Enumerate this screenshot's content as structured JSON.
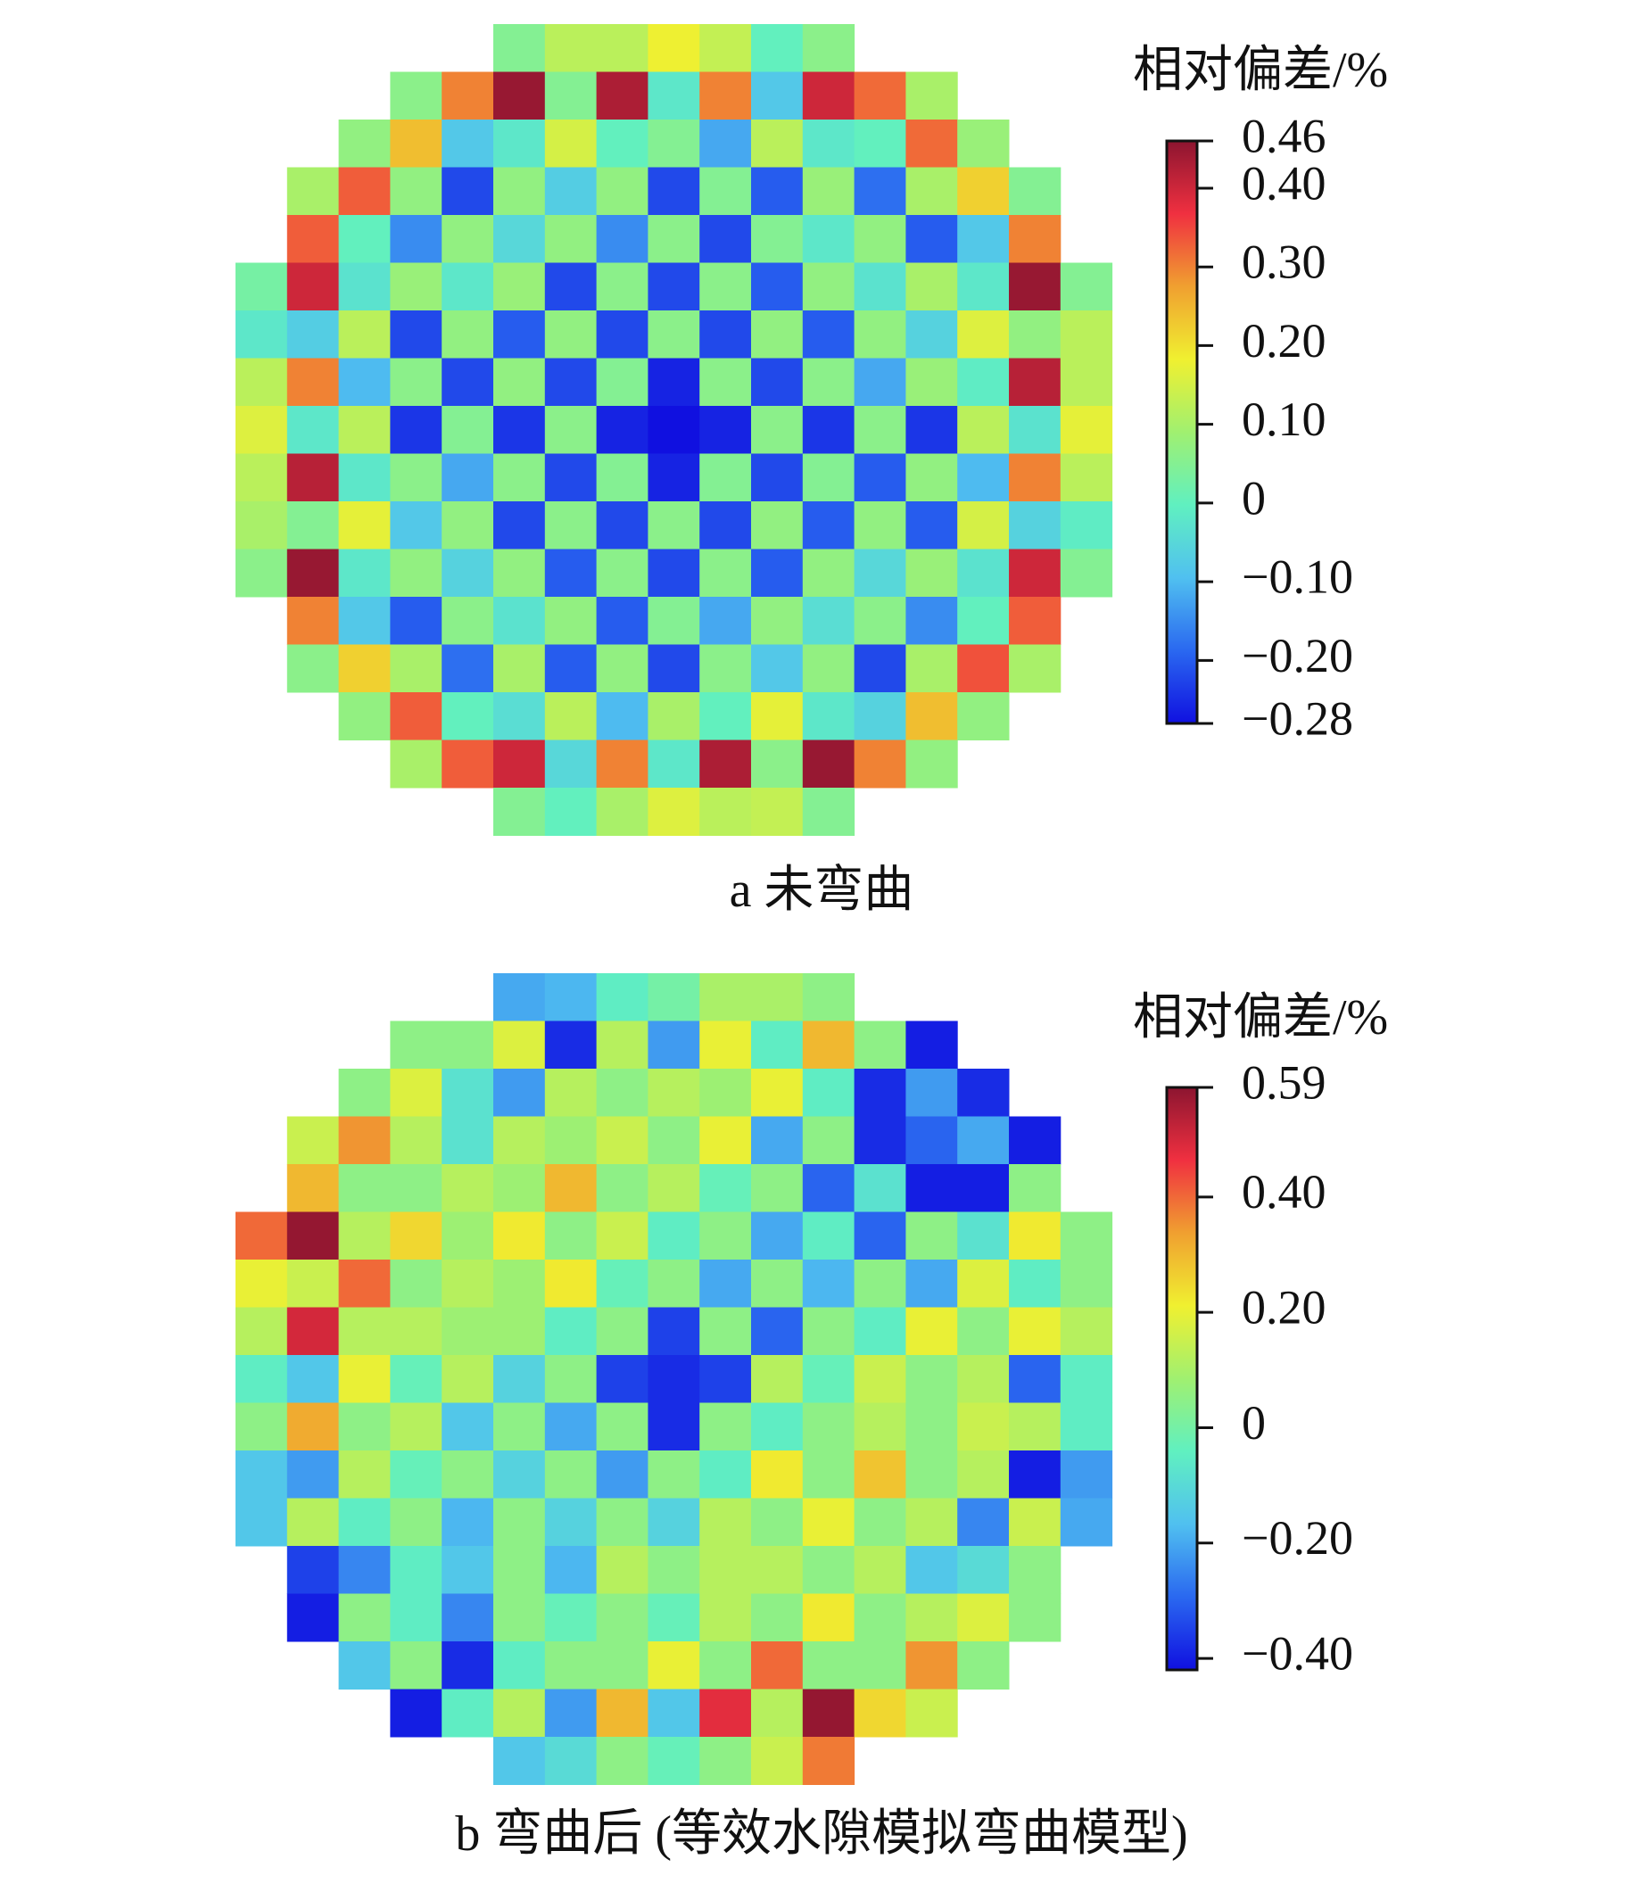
{
  "chart_data": [
    {
      "type": "heatmap",
      "colorbar_label": "相对偏差/%",
      "caption": "a  未弯曲",
      "colormap": [
        "#1010e0",
        "#2a68f0",
        "#50c0f0",
        "#60f0c0",
        "#a0f070",
        "#f0f030",
        "#f0a030",
        "#f03040",
        "#8c1530"
      ],
      "zlim": [
        -0.28,
        0.46
      ],
      "zticks": [
        0.46,
        {
          "value": 0.4,
          "label": "0.40"
        },
        {
          "value": 0.3,
          "label": "0.30"
        },
        {
          "value": 0.2,
          "label": "0.20"
        },
        {
          "value": 0.1,
          "label": "0.10"
        },
        0,
        {
          "value": -0.1,
          "label": "−0.10"
        },
        {
          "value": -0.2,
          "label": "−0.20"
        },
        {
          "value": -0.28,
          "label": "−0.28"
        }
      ],
      "z": [
        [
          null,
          null,
          null,
          null,
          null,
          0.05,
          0.12,
          0.12,
          0.18,
          0.13,
          0,
          0.06,
          null,
          null,
          null,
          null,
          null
        ],
        [
          null,
          null,
          null,
          0.06,
          0.3,
          0.45,
          0.05,
          0.43,
          -0.02,
          0.3,
          -0.08,
          0.4,
          0.32,
          0.1,
          null,
          null,
          null
        ],
        [
          null,
          null,
          0.07,
          0.24,
          -0.08,
          -0.02,
          0.15,
          0,
          0.05,
          -0.12,
          0.12,
          -0.02,
          0,
          0.32,
          0.08,
          null,
          null
        ],
        [
          null,
          0.1,
          0.33,
          0.07,
          -0.22,
          0.07,
          -0.07,
          0.07,
          -0.22,
          0.05,
          -0.2,
          0.08,
          -0.18,
          0.1,
          0.22,
          0.05,
          null
        ],
        [
          null,
          0.33,
          0,
          -0.15,
          0.07,
          -0.05,
          0.07,
          -0.15,
          0.06,
          -0.22,
          0.05,
          -0.02,
          0.07,
          -0.2,
          -0.08,
          0.3,
          null
        ],
        [
          0.03,
          0.4,
          -0.03,
          0.08,
          -0.02,
          0.08,
          -0.22,
          0.06,
          -0.22,
          0.06,
          -0.2,
          0.07,
          -0.03,
          0.1,
          -0.02,
          0.45,
          0.05
        ],
        [
          -0.02,
          -0.07,
          0.12,
          -0.22,
          0.07,
          -0.2,
          0.07,
          -0.22,
          0.06,
          -0.22,
          0.07,
          -0.2,
          0.07,
          -0.06,
          0.16,
          0.07,
          0.12
        ],
        [
          0.12,
          0.3,
          -0.1,
          0.06,
          -0.22,
          0.07,
          -0.22,
          0.05,
          -0.26,
          0.06,
          -0.22,
          0.06,
          -0.12,
          0.08,
          -0.01,
          0.42,
          0.12
        ],
        [
          0.16,
          -0.02,
          0.12,
          -0.24,
          0.05,
          -0.24,
          0.06,
          -0.26,
          -0.28,
          -0.26,
          0.06,
          -0.24,
          0.06,
          -0.24,
          0.12,
          -0.03,
          0.17
        ],
        [
          0.12,
          0.42,
          -0.02,
          0.06,
          -0.12,
          0.06,
          -0.22,
          0.05,
          -0.26,
          0.05,
          -0.22,
          0.05,
          -0.2,
          0.07,
          -0.1,
          0.3,
          0.12
        ],
        [
          0.1,
          0.05,
          0.17,
          -0.08,
          0.07,
          -0.22,
          0.06,
          -0.22,
          0.06,
          -0.22,
          0.07,
          -0.2,
          0.07,
          -0.2,
          0.15,
          -0.06,
          -0.01
        ],
        [
          0.06,
          0.45,
          -0.02,
          0.07,
          -0.06,
          0.07,
          -0.2,
          0.06,
          -0.22,
          0.06,
          -0.2,
          0.07,
          -0.05,
          0.08,
          -0.03,
          0.4,
          0.05
        ],
        [
          null,
          0.3,
          -0.08,
          -0.2,
          0.06,
          -0.03,
          0.07,
          -0.2,
          0.05,
          -0.12,
          0.07,
          -0.04,
          0.06,
          -0.15,
          0,
          0.33,
          null
        ],
        [
          null,
          0.06,
          0.22,
          0.1,
          -0.18,
          0.1,
          -0.2,
          0.07,
          -0.22,
          0.06,
          -0.08,
          0.07,
          -0.22,
          0.1,
          0.34,
          0.1,
          null
        ],
        [
          null,
          null,
          0.07,
          0.33,
          0,
          -0.04,
          0.12,
          -0.1,
          0.1,
          0,
          0.17,
          -0.02,
          -0.06,
          0.24,
          0.07,
          null,
          null
        ],
        [
          null,
          null,
          null,
          0.1,
          0.33,
          0.4,
          -0.05,
          0.3,
          -0.02,
          0.43,
          0.06,
          0.45,
          0.3,
          0.07,
          null,
          null,
          null
        ],
        [
          null,
          null,
          null,
          null,
          null,
          0.05,
          0,
          0.1,
          0.16,
          0.12,
          0.13,
          0.05,
          null,
          null,
          null,
          null,
          null
        ]
      ]
    },
    {
      "type": "heatmap",
      "colorbar_label": "相对偏差/%",
      "caption": "b 弯曲后 (等效水隙模拟弯曲模型)",
      "colormap": [
        "#1010e0",
        "#2a68f0",
        "#50c0f0",
        "#60f0c0",
        "#a0f070",
        "#f0f030",
        "#f0a030",
        "#f03040",
        "#8c1530"
      ],
      "zlim": [
        -0.42,
        0.59
      ],
      "zticks": [
        0.59,
        {
          "value": 0.4,
          "label": "0.40"
        },
        {
          "value": 0.2,
          "label": "0.20"
        },
        0,
        {
          "value": -0.2,
          "label": "−0.20"
        },
        {
          "value": -0.4,
          "label": "−0.40"
        }
      ],
      "z": [
        [
          null,
          null,
          null,
          null,
          null,
          -0.2,
          -0.18,
          -0.05,
          0,
          0.1,
          0.1,
          0.05,
          null,
          null,
          null,
          null,
          null
        ],
        [
          null,
          null,
          null,
          0.05,
          0.05,
          0.18,
          -0.38,
          0.12,
          -0.22,
          0.2,
          -0.05,
          0.3,
          0.05,
          -0.4,
          null,
          null,
          null
        ],
        [
          null,
          null,
          0.05,
          0.18,
          -0.08,
          -0.22,
          0.12,
          0.05,
          0.12,
          0.08,
          0.2,
          -0.05,
          -0.38,
          -0.22,
          -0.38,
          null,
          null
        ],
        [
          null,
          0.15,
          0.35,
          0.12,
          -0.08,
          0.12,
          0.08,
          0.15,
          0.05,
          0.2,
          -0.2,
          0.05,
          -0.38,
          -0.3,
          -0.2,
          -0.4,
          null
        ],
        [
          null,
          0.3,
          0.05,
          0.05,
          0.12,
          0.08,
          0.3,
          0.05,
          0.12,
          -0.03,
          0.05,
          -0.3,
          -0.08,
          -0.4,
          -0.4,
          0.05,
          null
        ],
        [
          0.4,
          0.58,
          0.12,
          0.25,
          0.08,
          0.22,
          0.05,
          0.15,
          -0.05,
          0.05,
          -0.2,
          -0.05,
          -0.3,
          0.05,
          -0.08,
          0.22,
          0.05
        ],
        [
          0.2,
          0.15,
          0.4,
          0.05,
          0.12,
          0.08,
          0.22,
          -0.03,
          0.05,
          -0.2,
          0.05,
          -0.18,
          0.05,
          -0.2,
          0.18,
          -0.05,
          0.05
        ],
        [
          0.12,
          0.5,
          0.12,
          0.12,
          0.08,
          0.08,
          -0.05,
          0.05,
          -0.35,
          0.05,
          -0.3,
          0.05,
          -0.05,
          0.2,
          0.05,
          0.2,
          0.12
        ],
        [
          -0.05,
          -0.15,
          0.2,
          -0.03,
          0.12,
          -0.12,
          0.05,
          -0.35,
          -0.38,
          -0.35,
          0.12,
          -0.03,
          0.15,
          0.05,
          0.12,
          -0.3,
          -0.05
        ],
        [
          0.05,
          0.32,
          0.05,
          0.12,
          -0.15,
          0.05,
          -0.2,
          0.05,
          -0.38,
          0.05,
          -0.05,
          0.05,
          0.12,
          0.05,
          0.15,
          0.12,
          -0.05
        ],
        [
          -0.15,
          -0.22,
          0.12,
          -0.03,
          0.05,
          -0.12,
          0.05,
          -0.22,
          0.05,
          -0.05,
          0.22,
          0.05,
          0.28,
          0.05,
          0.12,
          -0.4,
          -0.22
        ],
        [
          -0.15,
          0.12,
          -0.05,
          0.05,
          -0.18,
          0.05,
          -0.12,
          0.05,
          -0.12,
          0.12,
          0.05,
          0.2,
          0.05,
          0.12,
          -0.25,
          0.15,
          -0.2
        ],
        [
          null,
          -0.35,
          -0.25,
          -0.05,
          -0.15,
          0.05,
          -0.18,
          0.12,
          0.05,
          0.12,
          0.12,
          0.05,
          0.12,
          -0.15,
          -0.1,
          0.05,
          null
        ],
        [
          null,
          -0.4,
          0.05,
          -0.05,
          -0.25,
          0.05,
          -0.03,
          0.05,
          -0.03,
          0.12,
          0.05,
          0.22,
          0.05,
          0.12,
          0.18,
          0.05,
          null
        ],
        [
          null,
          null,
          -0.15,
          0.05,
          -0.38,
          -0.05,
          0.05,
          0.05,
          0.2,
          0.05,
          0.4,
          0.05,
          0.05,
          0.35,
          0.05,
          null,
          null
        ],
        [
          null,
          null,
          null,
          -0.4,
          -0.05,
          0.12,
          -0.22,
          0.3,
          -0.15,
          0.48,
          0.12,
          0.58,
          0.25,
          0.15,
          null,
          null,
          null
        ],
        [
          null,
          null,
          null,
          null,
          null,
          -0.15,
          -0.1,
          0.05,
          -0.03,
          0.05,
          0.15,
          0.38,
          null,
          null,
          null,
          null,
          null
        ]
      ]
    }
  ]
}
